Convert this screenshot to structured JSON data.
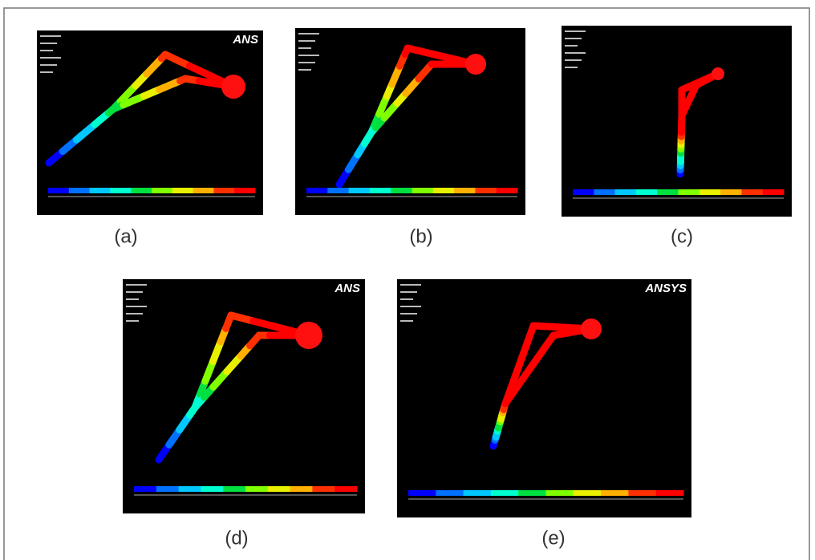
{
  "figure": {
    "panels": [
      {
        "label": "(a)",
        "logo": "ANS"
      },
      {
        "label": "(b)"
      },
      {
        "label": "(c)"
      },
      {
        "label": "(d)",
        "logo": "ANS"
      },
      {
        "label": "(e)",
        "logo": "ANSYS"
      }
    ]
  }
}
